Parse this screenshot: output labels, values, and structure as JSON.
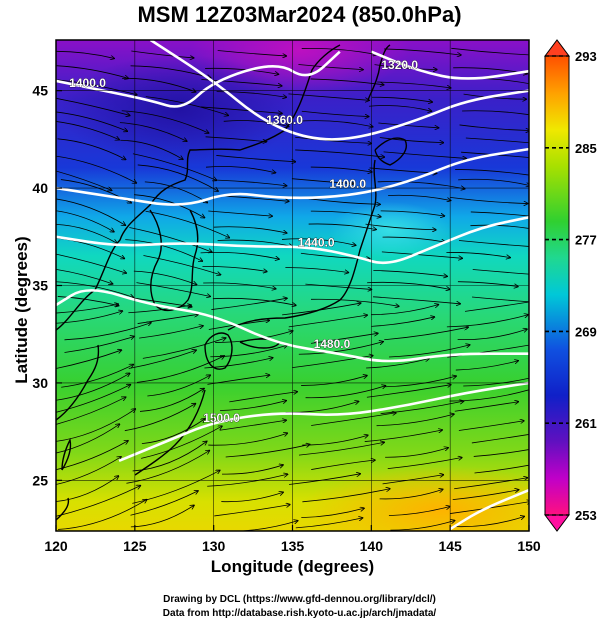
{
  "title": "MSM 12Z03Mar2024 (850.0hPa)",
  "xlabel": "Longitude (degrees)",
  "ylabel": "Latitude  (degrees)",
  "credit_line1": "Drawing by DCL (https://www.gfd-dennou.org/library/dcl/)",
  "credit_line2": "Data from http://database.rish.kyoto-u.ac.jp/arch/jmadata/",
  "map": {
    "lon_range": [
      120,
      150
    ],
    "lat_range": [
      22.4,
      47.6
    ],
    "lon_ticks": [
      "120",
      "125",
      "130",
      "135",
      "140",
      "145",
      "150"
    ],
    "lat_ticks": [
      "25",
      "30",
      "35",
      "40",
      "45"
    ],
    "field": "temperature",
    "overlays": [
      "wind-streamlines",
      "geopotential-height-contours",
      "coastlines"
    ]
  },
  "colorbar": {
    "ticks": [
      "293",
      "285",
      "277",
      "269",
      "261",
      "253"
    ],
    "range": [
      253,
      293
    ],
    "colors": [
      "#ff1080",
      "#c000c8",
      "#6010c0",
      "#1020c8",
      "#1050e0",
      "#00c8d8",
      "#20d890",
      "#30d030",
      "#a8e000",
      "#f0e800",
      "#ffa000",
      "#ff5000"
    ]
  },
  "contours": [
    {
      "label": "1400.0",
      "lat_at": [
        [
          120,
          45.5
        ],
        [
          123,
          45
        ],
        [
          126,
          44.5
        ],
        [
          128,
          44
        ],
        [
          130,
          45.5
        ],
        [
          134,
          46.5
        ],
        [
          136,
          45.5
        ],
        [
          138,
          47
        ]
      ]
    },
    {
      "label": "1360.0",
      "lat_at": [
        [
          126,
          47.6
        ],
        [
          130,
          45.5
        ],
        [
          133,
          43.5
        ],
        [
          136,
          42.5
        ],
        [
          139,
          42.5
        ],
        [
          143,
          43.5
        ],
        [
          146,
          44.5
        ],
        [
          150,
          45
        ]
      ]
    },
    {
      "label": "1320.0",
      "lat_at": [
        [
          140,
          47
        ],
        [
          143,
          46
        ],
        [
          146,
          45.5
        ],
        [
          150,
          46
        ]
      ]
    },
    {
      "label": "1400.0",
      "lat_at": [
        [
          120,
          40
        ],
        [
          124,
          39.5
        ],
        [
          128,
          39
        ],
        [
          131,
          39.8
        ],
        [
          134,
          39.5
        ],
        [
          137,
          39.5
        ],
        [
          140,
          39.8
        ],
        [
          143,
          40.5
        ],
        [
          146,
          41.5
        ],
        [
          150,
          42
        ]
      ]
    },
    {
      "label": "1440.0",
      "lat_at": [
        [
          120,
          37.5
        ],
        [
          124,
          37
        ],
        [
          128,
          37.2
        ],
        [
          132,
          37
        ],
        [
          136,
          37
        ],
        [
          139,
          36.5
        ],
        [
          141,
          36
        ],
        [
          144,
          37
        ],
        [
          147,
          38
        ],
        [
          150,
          38.5
        ]
      ]
    },
    {
      "label": "1480.0",
      "lat_at": [
        [
          120,
          34
        ],
        [
          122,
          35
        ],
        [
          126,
          34
        ],
        [
          130,
          33.5
        ],
        [
          134,
          32
        ],
        [
          138,
          31.5
        ],
        [
          141,
          31
        ],
        [
          145,
          31.5
        ],
        [
          150,
          31.5
        ]
      ]
    },
    {
      "label": "1500.0",
      "lat_at": [
        [
          124,
          26
        ],
        [
          127,
          27
        ],
        [
          130,
          28
        ],
        [
          134,
          28.5
        ],
        [
          138,
          28.3
        ],
        [
          142,
          28.8
        ],
        [
          146,
          29.5
        ],
        [
          150,
          30
        ]
      ]
    },
    {
      "label": "",
      "lat_at": [
        [
          145,
          22.5
        ],
        [
          147,
          23.5
        ],
        [
          150,
          24.5
        ]
      ]
    }
  ],
  "contour_labels": [
    {
      "text": "1400.0",
      "lon": 122,
      "lat": 45.2
    },
    {
      "text": "1360.0",
      "lon": 134.5,
      "lat": 43.3
    },
    {
      "text": "1320.0",
      "lon": 141.8,
      "lat": 46.1
    },
    {
      "text": "1400.0",
      "lon": 138.5,
      "lat": 40.0
    },
    {
      "text": "1440.0",
      "lon": 136.5,
      "lat": 37.0
    },
    {
      "text": "1480.0",
      "lon": 137.5,
      "lat": 31.8
    },
    {
      "text": "1500.0",
      "lon": 130.5,
      "lat": 28.0
    }
  ]
}
